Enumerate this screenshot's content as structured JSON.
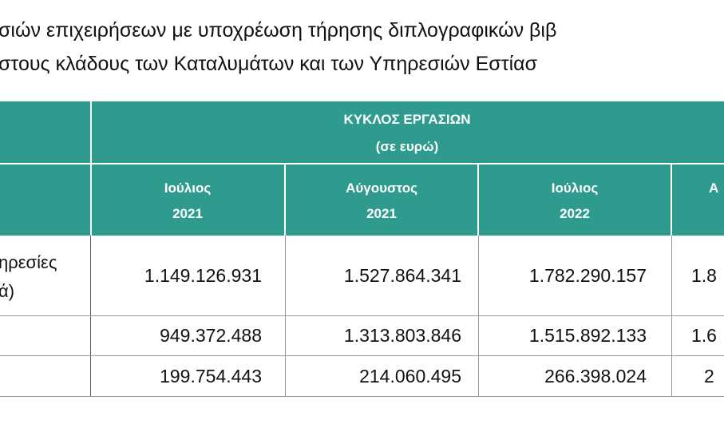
{
  "title": {
    "lines": [
      "σιών επιχειρήσεων με υποχρέωση τήρησης διπλογραφικών βιβ",
      "στους κλάδους των Καταλυμάτων  και των Υπηρεσιών Εστίασ"
    ]
  },
  "table": {
    "group_header": [
      "ΚΥΚΛΟΣ ΕΡΓΑΣΙΩΝ",
      "(σε ευρώ)"
    ],
    "columns": [
      [
        "Ιούλιος",
        "2021"
      ],
      [
        "Αύγουστος",
        "2021"
      ],
      [
        "Ιούλιος",
        "2022"
      ],
      [
        "Α"
      ]
    ],
    "rows": [
      {
        "label": [
          "ηρεσίες",
          "ά)"
        ],
        "cells": [
          "1.149.126.931",
          "1.527.864.341",
          "1.782.290.157",
          "1.8"
        ]
      },
      {
        "label": [],
        "cells": [
          "949.372.488",
          "1.313.803.846",
          "1.515.892.133",
          "1.6"
        ]
      },
      {
        "label": [],
        "cells": [
          "199.754.443",
          "214.060.495",
          "266.398.024",
          "2"
        ]
      }
    ]
  }
}
